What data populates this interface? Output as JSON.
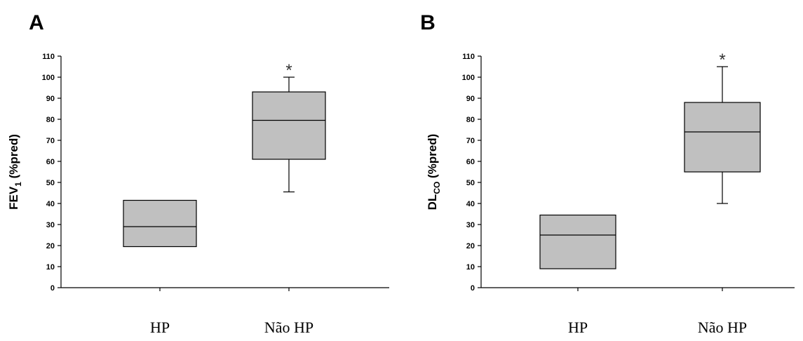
{
  "colors": {
    "box_fill": "#c0c0c0",
    "stroke": "#000000"
  },
  "chart_data": [
    {
      "panel": "A",
      "type": "box",
      "ylabel": {
        "main": "FEV",
        "sub": "1",
        "suffix": " (%pred)"
      },
      "ylim": [
        0,
        110
      ],
      "yticks": [
        0,
        10,
        20,
        30,
        40,
        50,
        60,
        70,
        80,
        90,
        100,
        110
      ],
      "categories": [
        "HP",
        "Não HP"
      ],
      "boxes": [
        {
          "category": "HP",
          "q1": 19.5,
          "median": 29,
          "q3": 41.5,
          "whisker_low": null,
          "whisker_high": null,
          "marker": ""
        },
        {
          "category": "Não HP",
          "q1": 61,
          "median": 79.5,
          "q3": 93,
          "whisker_low": 45.5,
          "whisker_high": 100,
          "marker": "*"
        }
      ],
      "grid": false
    },
    {
      "panel": "B",
      "type": "box",
      "ylabel": {
        "main": "DL",
        "sub": "CO",
        "suffix": " (%pred)"
      },
      "ylim": [
        0,
        110
      ],
      "yticks": [
        0,
        10,
        20,
        30,
        40,
        50,
        60,
        70,
        80,
        90,
        100,
        110
      ],
      "categories": [
        "HP",
        "Não HP"
      ],
      "boxes": [
        {
          "category": "HP",
          "q1": 9,
          "median": 25,
          "q3": 34.5,
          "whisker_low": null,
          "whisker_high": null,
          "marker": ""
        },
        {
          "category": "Não HP",
          "q1": 55,
          "median": 74,
          "q3": 88,
          "whisker_low": 40,
          "whisker_high": 105,
          "marker": "*"
        }
      ],
      "grid": false
    }
  ]
}
